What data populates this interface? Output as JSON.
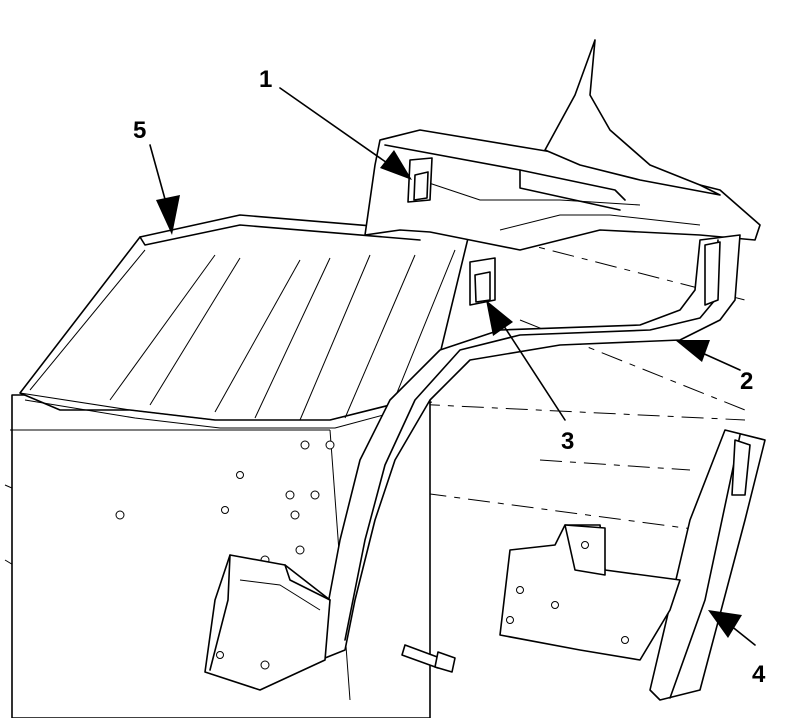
{
  "callouts": [
    {
      "id": "1",
      "label": "1"
    },
    {
      "id": "2",
      "label": "2"
    },
    {
      "id": "3",
      "label": "3"
    },
    {
      "id": "4",
      "label": "4"
    },
    {
      "id": "5",
      "label": "5"
    }
  ],
  "colors": {
    "ink": "#000000",
    "paper": "#ffffff"
  }
}
